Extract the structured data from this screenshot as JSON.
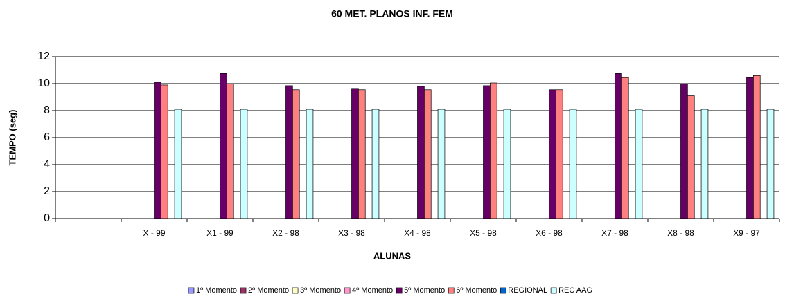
{
  "chart_data": {
    "type": "bar",
    "title": "60 MET. PLANOS INF. FEM",
    "x_label": "ALUNAS",
    "y_label": "TEMPO (seg)",
    "categories": [
      null,
      "X - 99",
      "X1 - 99",
      "X2 - 98",
      "X3 - 98",
      "X4 - 98",
      "X5 - 98",
      "X6 - 98",
      "X7 - 98",
      "X8 - 98",
      "X9 - 97"
    ],
    "series": [
      {
        "name": "1º Momento",
        "color": "#9999FF",
        "values": [
          null,
          null,
          null,
          null,
          null,
          null,
          null,
          null,
          null,
          null,
          null
        ]
      },
      {
        "name": "2º Momento",
        "color": "#993366",
        "values": [
          null,
          null,
          null,
          null,
          null,
          null,
          null,
          null,
          null,
          null,
          null
        ]
      },
      {
        "name": "3º Momento",
        "color": "#FFFFCC",
        "values": [
          null,
          null,
          null,
          null,
          null,
          null,
          null,
          null,
          null,
          null,
          null
        ]
      },
      {
        "name": "4º Momento",
        "color": "#FF99CC",
        "values": [
          null,
          null,
          null,
          null,
          null,
          null,
          null,
          null,
          null,
          null,
          null
        ]
      },
      {
        "name": "5º Momento",
        "color": "#660066",
        "values": [
          null,
          10.1,
          10.75,
          9.85,
          9.65,
          9.8,
          9.85,
          9.55,
          10.75,
          10.0,
          10.45
        ]
      },
      {
        "name": "6º Momento",
        "color": "#FF8080",
        "values": [
          null,
          9.9,
          10.0,
          9.55,
          9.55,
          9.55,
          10.05,
          9.55,
          10.45,
          9.1,
          10.6
        ]
      },
      {
        "name": "REGIONAL",
        "color": "#0066CC",
        "values": [
          null,
          null,
          null,
          null,
          null,
          null,
          null,
          null,
          null,
          null,
          null
        ]
      },
      {
        "name": "REC AAG",
        "color": "#CCFFFF",
        "values": [
          null,
          8.1,
          8.1,
          8.1,
          8.1,
          8.1,
          8.1,
          8.1,
          8.1,
          8.1,
          8.1
        ]
      }
    ],
    "ylim": [
      0,
      12
    ],
    "yticks": [
      0,
      2,
      4,
      6,
      8,
      10,
      12
    ],
    "grid": true,
    "legend": "bottom"
  }
}
